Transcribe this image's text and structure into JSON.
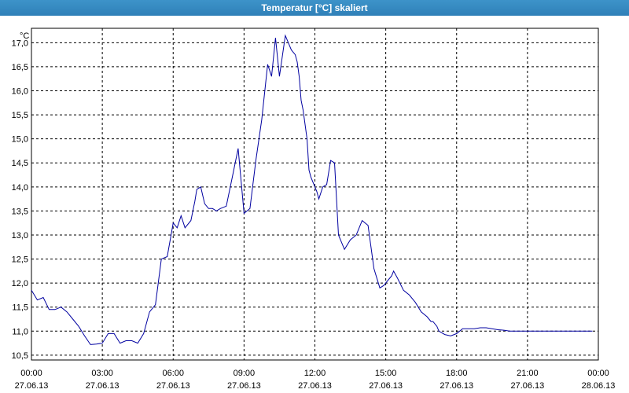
{
  "window": {
    "title": "Temperatur [°C] skaliert"
  },
  "colors": {
    "titlebar": "#3a8cc4",
    "line": "#0000a0",
    "grid": "#000000"
  },
  "chart_data": {
    "type": "line",
    "title": "Temperatur [°C] skaliert",
    "ylabel": "°C",
    "xlabel": "",
    "grid": true,
    "xlim": [
      "27.06.13 00:00",
      "28.06.13 00:00"
    ],
    "ylim": [
      10.4,
      17.3
    ],
    "y_ticks": [
      "10,5",
      "11,0",
      "11,5",
      "12,0",
      "12,5",
      "13,0",
      "13,5",
      "14,0",
      "14,5",
      "15,0",
      "15,5",
      "16,0",
      "16,5",
      "17,0"
    ],
    "y_tick_values": [
      10.5,
      11.0,
      11.5,
      12.0,
      12.5,
      13.0,
      13.5,
      14.0,
      14.5,
      15.0,
      15.5,
      16.0,
      16.5,
      17.0
    ],
    "x_ticks": [
      {
        "time": "00:00",
        "date": "27.06.13"
      },
      {
        "time": "03:00",
        "date": "27.06.13"
      },
      {
        "time": "06:00",
        "date": "27.06.13"
      },
      {
        "time": "09:00",
        "date": "27.06.13"
      },
      {
        "time": "12:00",
        "date": "27.06.13"
      },
      {
        "time": "15:00",
        "date": "27.06.13"
      },
      {
        "time": "18:00",
        "date": "27.06.13"
      },
      {
        "time": "21:00",
        "date": "27.06.13"
      },
      {
        "time": "00:00",
        "date": "28.06.13"
      }
    ],
    "series": [
      {
        "x": [
          "00:00",
          "00:15",
          "00:30",
          "00:45",
          "01:00",
          "01:15",
          "01:30",
          "01:45",
          "02:00",
          "02:15",
          "02:30",
          "02:45",
          "03:00",
          "03:15",
          "03:30",
          "03:45",
          "04:00",
          "04:15",
          "04:30",
          "04:45",
          "05:00",
          "05:15",
          "05:30",
          "05:45",
          "06:00",
          "06:10",
          "06:20",
          "06:30",
          "06:45",
          "06:55",
          "07:00",
          "07:10",
          "07:20",
          "07:30",
          "07:40",
          "07:50",
          "08:00",
          "08:15",
          "08:30",
          "08:45",
          "09:00",
          "09:15",
          "09:30",
          "09:45",
          "10:00",
          "10:10",
          "10:20",
          "10:30",
          "10:45",
          "11:00",
          "11:10",
          "11:15",
          "11:20",
          "11:25",
          "11:30",
          "11:35",
          "11:40",
          "11:45",
          "11:50",
          "12:00",
          "12:05",
          "12:10",
          "12:20",
          "12:30",
          "12:40",
          "12:50",
          "13:00",
          "13:15",
          "13:30",
          "13:45",
          "14:00",
          "14:15",
          "14:30",
          "14:45",
          "14:55",
          "15:00",
          "15:10",
          "15:15",
          "15:20",
          "15:30",
          "15:45",
          "16:00",
          "16:15",
          "16:30",
          "16:45",
          "16:55",
          "17:00",
          "17:10",
          "17:15",
          "17:30",
          "17:45",
          "18:00",
          "18:15",
          "18:30",
          "18:45",
          "19:00",
          "19:15",
          "19:30",
          "19:45",
          "20:00",
          "20:15",
          "20:30",
          "20:45",
          "21:00",
          "21:15",
          "21:30",
          "21:45",
          "22:00",
          "22:15",
          "22:30",
          "22:45",
          "23:00",
          "23:15",
          "23:30",
          "23:45"
        ],
        "y": [
          11.85,
          11.65,
          11.7,
          11.45,
          11.45,
          11.5,
          11.4,
          11.25,
          11.1,
          10.9,
          10.72,
          10.73,
          10.75,
          10.95,
          10.95,
          10.75,
          10.8,
          10.8,
          10.75,
          10.95,
          11.4,
          11.55,
          12.5,
          12.55,
          13.25,
          13.15,
          13.4,
          13.15,
          13.3,
          13.7,
          13.95,
          14.0,
          13.65,
          13.55,
          13.55,
          13.5,
          13.55,
          13.6,
          14.2,
          14.8,
          13.45,
          13.55,
          14.55,
          15.4,
          16.55,
          16.3,
          17.1,
          16.3,
          17.15,
          16.85,
          16.75,
          16.6,
          16.3,
          15.8,
          15.6,
          15.3,
          15.0,
          14.35,
          14.2,
          14.0,
          13.9,
          13.75,
          14.0,
          14.05,
          14.55,
          14.5,
          13.0,
          12.7,
          12.9,
          13.0,
          13.3,
          13.2,
          12.3,
          11.9,
          11.95,
          12.0,
          12.1,
          12.15,
          12.25,
          12.1,
          11.85,
          11.75,
          11.6,
          11.4,
          11.3,
          11.2,
          11.2,
          11.1,
          11.0,
          10.93,
          10.9,
          10.95,
          11.05,
          11.05,
          11.05,
          11.07,
          11.07,
          11.05,
          11.03,
          11.02,
          11.0,
          11.0,
          11.0,
          11.0,
          11.0,
          11.0,
          11.0,
          11.0,
          11.0,
          11.0,
          11.0,
          11.0,
          11.0,
          11.0,
          11.0
        ]
      }
    ]
  }
}
